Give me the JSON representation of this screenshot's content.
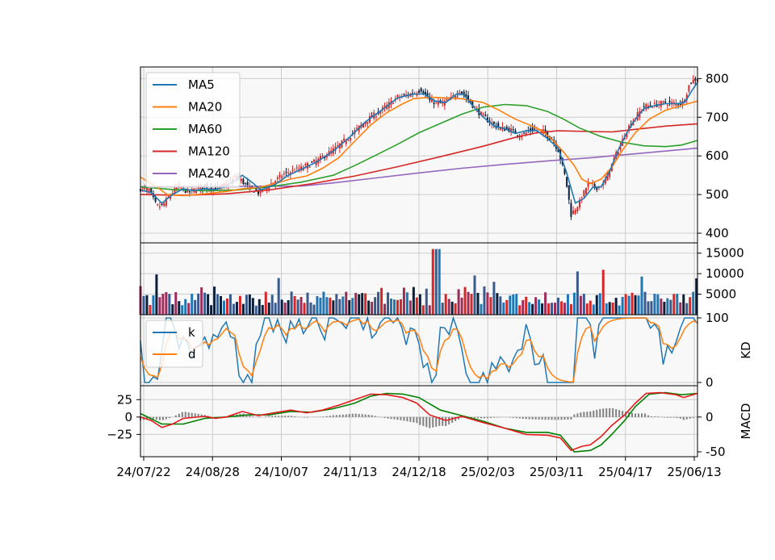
{
  "chart_data": {
    "type": "candlestick-with-indicators",
    "date_labels": [
      "24/07/22",
      "24/08/28",
      "24/10/07",
      "24/11/13",
      "24/12/18",
      "25/02/03",
      "25/03/11",
      "25/04/17",
      "25/06/13"
    ],
    "colors": {
      "up": "#d62728",
      "down": "#0b1f3a",
      "ma5": "#1f77b4",
      "ma20": "#ff7f0e",
      "ma60": "#2ca02c",
      "ma120": "#d62728",
      "ma240": "#9467bd",
      "k": "#1f77b4",
      "d": "#ff7f0e",
      "dif": "#e31a1c",
      "dea": "#008000",
      "hist": "#808080",
      "grid": "#cccccc",
      "panel_bg": "#f8f8f8"
    },
    "price": {
      "ylim": [
        375,
        830
      ],
      "ticks": [
        400,
        500,
        600,
        700,
        800
      ],
      "legend": [
        "MA5",
        "MA20",
        "MA60",
        "MA120",
        "MA240"
      ],
      "close_path": [
        [
          0,
          515
        ],
        [
          8,
          512
        ],
        [
          15,
          470
        ],
        [
          20,
          470
        ],
        [
          28,
          500
        ],
        [
          35,
          522
        ],
        [
          45,
          505
        ],
        [
          55,
          520
        ],
        [
          70,
          515
        ],
        [
          80,
          525
        ],
        [
          90,
          548
        ],
        [
          100,
          520
        ],
        [
          110,
          505
        ],
        [
          122,
          528
        ],
        [
          135,
          555
        ],
        [
          150,
          568
        ],
        [
          165,
          588
        ],
        [
          180,
          615
        ],
        [
          195,
          650
        ],
        [
          210,
          690
        ],
        [
          225,
          718
        ],
        [
          240,
          752
        ],
        [
          255,
          762
        ],
        [
          262,
          772
        ],
        [
          270,
          742
        ],
        [
          280,
          735
        ],
        [
          290,
          748
        ],
        [
          298,
          770
        ],
        [
          305,
          748
        ],
        [
          315,
          715
        ],
        [
          325,
          690
        ],
        [
          335,
          672
        ],
        [
          345,
          668
        ],
        [
          355,
          652
        ],
        [
          365,
          668
        ],
        [
          375,
          665
        ],
        [
          385,
          640
        ],
        [
          390,
          615
        ],
        [
          397,
          540
        ],
        [
          402,
          448
        ],
        [
          410,
          480
        ],
        [
          418,
          530
        ],
        [
          425,
          518
        ],
        [
          432,
          525
        ],
        [
          440,
          578
        ],
        [
          448,
          628
        ],
        [
          455,
          672
        ],
        [
          462,
          700
        ],
        [
          470,
          728
        ],
        [
          480,
          732
        ],
        [
          490,
          738
        ],
        [
          500,
          735
        ],
        [
          507,
          740
        ],
        [
          513,
          790
        ],
        [
          520,
          802
        ]
      ],
      "ma5": [
        [
          0,
          512
        ],
        [
          10,
          505
        ],
        [
          20,
          478
        ],
        [
          30,
          500
        ],
        [
          40,
          515
        ],
        [
          50,
          510
        ],
        [
          60,
          515
        ],
        [
          70,
          513
        ],
        [
          80,
          522
        ],
        [
          90,
          540
        ],
        [
          95,
          550
        ],
        [
          105,
          530
        ],
        [
          112,
          512
        ],
        [
          125,
          525
        ],
        [
          138,
          550
        ],
        [
          150,
          565
        ],
        [
          165,
          585
        ],
        [
          180,
          612
        ],
        [
          195,
          648
        ],
        [
          210,
          688
        ],
        [
          225,
          718
        ],
        [
          240,
          750
        ],
        [
          255,
          760
        ],
        [
          265,
          760
        ],
        [
          275,
          742
        ],
        [
          285,
          738
        ],
        [
          295,
          760
        ],
        [
          302,
          758
        ],
        [
          310,
          730
        ],
        [
          320,
          700
        ],
        [
          330,
          678
        ],
        [
          340,
          670
        ],
        [
          350,
          658
        ],
        [
          360,
          665
        ],
        [
          370,
          665
        ],
        [
          380,
          645
        ],
        [
          390,
          620
        ],
        [
          398,
          555
        ],
        [
          406,
          478
        ],
        [
          414,
          490
        ],
        [
          422,
          518
        ],
        [
          430,
          520
        ],
        [
          438,
          560
        ],
        [
          446,
          615
        ],
        [
          454,
          660
        ],
        [
          462,
          695
        ],
        [
          470,
          722
        ],
        [
          480,
          730
        ],
        [
          490,
          735
        ],
        [
          500,
          735
        ],
        [
          508,
          738
        ],
        [
          515,
          770
        ],
        [
          520,
          790
        ]
      ],
      "ma20": [
        [
          0,
          545
        ],
        [
          15,
          520
        ],
        [
          25,
          500
        ],
        [
          40,
          497
        ],
        [
          60,
          502
        ],
        [
          80,
          508
        ],
        [
          95,
          515
        ],
        [
          110,
          518
        ],
        [
          125,
          528
        ],
        [
          140,
          540
        ],
        [
          155,
          548
        ],
        [
          170,
          568
        ],
        [
          185,
          595
        ],
        [
          200,
          638
        ],
        [
          215,
          680
        ],
        [
          230,
          712
        ],
        [
          245,
          735
        ],
        [
          255,
          748
        ],
        [
          270,
          752
        ],
        [
          285,
          750
        ],
        [
          300,
          748
        ],
        [
          320,
          738
        ],
        [
          335,
          718
        ],
        [
          350,
          695
        ],
        [
          365,
          678
        ],
        [
          375,
          665
        ],
        [
          385,
          640
        ],
        [
          395,
          610
        ],
        [
          405,
          575
        ],
        [
          412,
          540
        ],
        [
          420,
          528
        ],
        [
          430,
          540
        ],
        [
          440,
          570
        ],
        [
          450,
          615
        ],
        [
          462,
          660
        ],
        [
          475,
          695
        ],
        [
          490,
          718
        ],
        [
          505,
          730
        ],
        [
          520,
          742
        ]
      ],
      "ma60": [
        [
          0,
          520
        ],
        [
          30,
          513
        ],
        [
          60,
          510
        ],
        [
          90,
          512
        ],
        [
          120,
          520
        ],
        [
          150,
          532
        ],
        [
          180,
          550
        ],
        [
          200,
          575
        ],
        [
          220,
          602
        ],
        [
          240,
          630
        ],
        [
          260,
          660
        ],
        [
          280,
          684
        ],
        [
          300,
          708
        ],
        [
          320,
          726
        ],
        [
          340,
          733
        ],
        [
          360,
          730
        ],
        [
          380,
          715
        ],
        [
          395,
          695
        ],
        [
          410,
          672
        ],
        [
          430,
          650
        ],
        [
          450,
          635
        ],
        [
          470,
          626
        ],
        [
          490,
          624
        ],
        [
          505,
          628
        ],
        [
          520,
          640
        ]
      ],
      "ma120": [
        [
          0,
          500
        ],
        [
          40,
          498
        ],
        [
          80,
          502
        ],
        [
          120,
          512
        ],
        [
          160,
          528
        ],
        [
          200,
          548
        ],
        [
          240,
          572
        ],
        [
          280,
          598
        ],
        [
          320,
          625
        ],
        [
          350,
          648
        ],
        [
          370,
          660
        ],
        [
          390,
          665
        ],
        [
          420,
          663
        ],
        [
          440,
          662
        ],
        [
          460,
          668
        ],
        [
          490,
          677
        ],
        [
          520,
          683
        ]
      ],
      "ma240": [
        [
          0,
          520
        ],
        [
          100,
          521
        ],
        [
          150,
          522
        ],
        [
          180,
          530
        ],
        [
          220,
          543
        ],
        [
          260,
          556
        ],
        [
          300,
          568
        ],
        [
          340,
          578
        ],
        [
          380,
          587
        ],
        [
          420,
          595
        ],
        [
          460,
          605
        ],
        [
          520,
          620
        ]
      ]
    },
    "volume": {
      "ylim": [
        0,
        17500
      ],
      "ticks": [
        5000,
        10000,
        15000
      ]
    },
    "kd": {
      "ylim": [
        -5,
        105
      ],
      "ticks": [
        0,
        100
      ],
      "ylabel": "KD",
      "legend": [
        "k",
        "d"
      ]
    },
    "macd": {
      "ylim": [
        -57,
        45
      ],
      "left_ticks": [
        -25,
        0,
        25
      ],
      "right_ticks": [
        -50,
        0
      ],
      "ylabel": "MACD",
      "dif": [
        [
          0,
          0
        ],
        [
          10,
          -5
        ],
        [
          20,
          -15
        ],
        [
          30,
          -10
        ],
        [
          40,
          -2
        ],
        [
          60,
          1
        ],
        [
          70,
          -2
        ],
        [
          80,
          0
        ],
        [
          95,
          8
        ],
        [
          110,
          2
        ],
        [
          125,
          6
        ],
        [
          140,
          10
        ],
        [
          155,
          6
        ],
        [
          170,
          10
        ],
        [
          185,
          17
        ],
        [
          200,
          25
        ],
        [
          215,
          33
        ],
        [
          230,
          32
        ],
        [
          245,
          28
        ],
        [
          258,
          20
        ],
        [
          270,
          3
        ],
        [
          285,
          -5
        ],
        [
          300,
          1
        ],
        [
          320,
          -8
        ],
        [
          340,
          -16
        ],
        [
          360,
          -25
        ],
        [
          380,
          -26
        ],
        [
          392,
          -30
        ],
        [
          402,
          -48
        ],
        [
          412,
          -42
        ],
        [
          420,
          -40
        ],
        [
          430,
          -28
        ],
        [
          440,
          -12
        ],
        [
          452,
          3
        ],
        [
          462,
          20
        ],
        [
          472,
          34
        ],
        [
          485,
          35
        ],
        [
          500,
          32
        ],
        [
          507,
          28
        ],
        [
          520,
          34
        ]
      ],
      "dea": [
        [
          0,
          5
        ],
        [
          20,
          -10
        ],
        [
          40,
          -10
        ],
        [
          60,
          -2
        ],
        [
          80,
          0
        ],
        [
          100,
          3
        ],
        [
          120,
          3
        ],
        [
          140,
          8
        ],
        [
          160,
          7
        ],
        [
          180,
          12
        ],
        [
          200,
          20
        ],
        [
          215,
          30
        ],
        [
          230,
          34
        ],
        [
          245,
          33
        ],
        [
          260,
          28
        ],
        [
          280,
          10
        ],
        [
          300,
          2
        ],
        [
          320,
          -6
        ],
        [
          340,
          -16
        ],
        [
          360,
          -22
        ],
        [
          380,
          -22
        ],
        [
          392,
          -26
        ],
        [
          405,
          -50
        ],
        [
          420,
          -48
        ],
        [
          430,
          -40
        ],
        [
          440,
          -25
        ],
        [
          452,
          -5
        ],
        [
          462,
          15
        ],
        [
          475,
          33
        ],
        [
          490,
          35
        ],
        [
          505,
          32
        ],
        [
          520,
          34
        ]
      ]
    }
  }
}
